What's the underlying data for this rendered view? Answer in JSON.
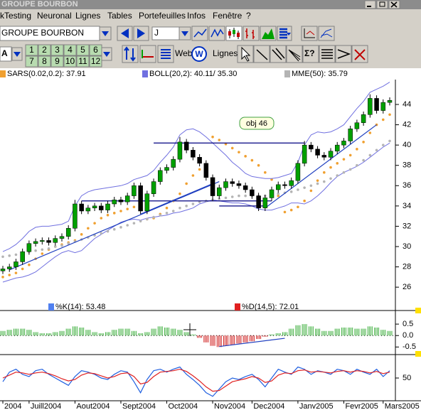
{
  "window": {
    "title": "GROUPE BOURBON"
  },
  "menu": [
    "kTesting",
    "Neuronal",
    "Lignes",
    "Tables",
    "Portefeuilles",
    "Infos",
    "Fenêtre",
    "?"
  ],
  "toolbar": {
    "symbol": "GROUPE BOURBON",
    "period": "J",
    "font": "A",
    "numbers": [
      "1",
      "2",
      "3",
      "4",
      "5",
      "6",
      "7",
      "8",
      "9",
      "10",
      "11",
      "12"
    ],
    "web": "Web",
    "web_icon": "W",
    "lines": "Lignes",
    "sigma": "Σ?"
  },
  "chart_data": [
    {
      "type": "candlestick",
      "categories": [
        "2004",
        null,
        null,
        null,
        "Juill2004",
        null,
        null,
        null,
        null,
        null,
        null,
        "Aout2004",
        null,
        null,
        null,
        null,
        null,
        null,
        "Sept2004",
        null,
        null,
        null,
        null,
        null,
        null,
        "Oct2004",
        null,
        null,
        null,
        null,
        null,
        null,
        "Nov2004",
        null,
        null,
        null,
        null,
        null,
        "Dec2004",
        null,
        null,
        null,
        null,
        null,
        null,
        "Janv2005",
        null,
        null,
        null,
        null,
        null,
        null,
        "Fevr2005",
        null,
        null,
        null,
        null,
        null,
        "Mars2005",
        null
      ],
      "open": [
        27.6,
        27.8,
        28.0,
        28.5,
        29.5,
        30.3,
        30.5,
        30.6,
        30.4,
        30.8,
        31.0,
        31.8,
        34.2,
        33.5,
        33.8,
        34.0,
        33.6,
        34.2,
        34.6,
        34.4,
        35.0,
        36.0,
        33.5,
        35.2,
        36.4,
        37.5,
        37.8,
        38.6,
        40.3,
        39.5,
        38.8,
        38.2,
        36.8,
        35.0,
        35.8,
        36.4,
        36.2,
        36.0,
        35.6,
        35.0,
        33.8,
        34.8,
        35.6,
        36.1,
        36.0,
        36.5,
        38.2,
        40.0,
        39.6,
        39.0,
        38.8,
        39.4,
        40.0,
        40.4,
        41.6,
        42.2,
        43.0,
        44.6,
        43.4,
        44.2
      ],
      "high": [
        28.1,
        28.3,
        28.8,
        29.8,
        30.6,
        30.8,
        30.9,
        30.9,
        31.1,
        31.3,
        32.1,
        34.6,
        34.5,
        34.1,
        34.3,
        34.3,
        34.5,
        34.9,
        34.9,
        35.3,
        36.3,
        36.3,
        35.5,
        36.7,
        37.8,
        38.1,
        38.9,
        40.8,
        40.6,
        39.8,
        39.1,
        38.5,
        37.1,
        36.1,
        36.7,
        36.7,
        36.5,
        36.3,
        35.9,
        35.3,
        35.1,
        35.9,
        36.4,
        36.4,
        36.8,
        38.5,
        40.4,
        40.3,
        39.9,
        39.3,
        39.7,
        40.3,
        40.7,
        41.9,
        42.5,
        43.3,
        45.0,
        44.9,
        44.5,
        44.7
      ],
      "low": [
        27.3,
        27.5,
        27.7,
        28.2,
        29.2,
        30.0,
        30.2,
        30.1,
        30.1,
        30.5,
        30.7,
        31.5,
        33.2,
        33.2,
        33.5,
        33.3,
        33.3,
        33.9,
        34.1,
        34.1,
        34.7,
        33.2,
        33.2,
        34.9,
        36.1,
        37.2,
        37.5,
        38.3,
        39.2,
        38.5,
        37.9,
        36.5,
        34.5,
        34.7,
        35.5,
        35.9,
        35.7,
        35.3,
        34.7,
        33.5,
        33.5,
        34.5,
        35.3,
        35.7,
        35.7,
        36.2,
        37.9,
        39.3,
        38.7,
        38.5,
        38.5,
        39.1,
        39.7,
        40.1,
        41.3,
        41.9,
        42.7,
        43.1,
        43.1,
        43.9
      ],
      "close": [
        27.8,
        28.0,
        28.5,
        29.5,
        30.3,
        30.5,
        30.6,
        30.4,
        30.8,
        31.0,
        31.8,
        34.2,
        33.5,
        33.8,
        34.0,
        33.6,
        34.2,
        34.6,
        34.4,
        35.0,
        36.0,
        33.5,
        35.2,
        36.4,
        37.5,
        37.8,
        38.6,
        40.3,
        39.5,
        38.8,
        38.2,
        36.8,
        35.0,
        35.8,
        36.4,
        36.2,
        36.0,
        35.6,
        35.0,
        33.8,
        34.8,
        35.6,
        36.1,
        36.0,
        36.5,
        38.2,
        40.0,
        39.6,
        39.0,
        38.8,
        39.4,
        40.0,
        40.4,
        41.6,
        42.2,
        43.0,
        44.6,
        43.4,
        44.2,
        44.4
      ],
      "up_color": "#00a000",
      "down_color": "#000000",
      "series": [
        {
          "name": "SARS(0.02,0.2): 37.91",
          "color": "#f0a030",
          "style": "dots",
          "values": [
            27.0,
            27.2,
            27.4,
            27.8,
            28.2,
            28.8,
            29.3,
            29.7,
            30.0,
            30.2,
            30.4,
            30.6,
            31.2,
            31.8,
            32.3,
            32.8,
            33.1,
            33.3,
            33.5,
            33.7,
            33.9,
            34.2,
            32.7,
            32.8,
            33.2,
            33.8,
            34.5,
            35.2,
            36.2,
            37.0,
            37.6,
            38.1,
            40.8,
            40.5,
            40.1,
            39.7,
            39.3,
            38.9,
            38.5,
            38.0,
            37.3,
            36.6,
            35.0,
            33.4,
            33.6,
            33.9,
            34.5,
            35.5,
            36.5,
            37.3,
            37.8,
            38.2,
            38.6,
            39.0,
            39.6,
            40.3,
            41.2,
            42.0,
            42.5,
            43.0
          ]
        },
        {
          "name": "BOLL(20,2): 40.11/ 35.30",
          "color": "#7070e0",
          "style": "band",
          "upper": [
            29.5,
            29.8,
            30.2,
            30.8,
            31.5,
            31.9,
            32.0,
            32.0,
            32.1,
            32.2,
            32.5,
            34.0,
            35.0,
            35.4,
            35.6,
            35.7,
            35.8,
            35.9,
            36.0,
            36.2,
            36.6,
            36.8,
            37.0,
            37.5,
            38.3,
            39.0,
            39.8,
            41.0,
            41.5,
            41.6,
            41.3,
            40.8,
            40.2,
            39.6,
            39.0,
            38.3,
            37.8,
            37.2,
            36.9,
            36.8,
            36.7,
            36.7,
            36.8,
            37.0,
            37.2,
            38.3,
            40.0,
            41.0,
            41.3,
            41.2,
            41.3,
            41.6,
            42.0,
            42.8,
            43.6,
            44.3,
            45.2,
            45.5,
            45.8,
            46.2
          ],
          "lower": [
            26.5,
            26.7,
            26.9,
            27.0,
            27.2,
            27.5,
            28.0,
            28.5,
            29.0,
            29.4,
            29.6,
            29.4,
            29.6,
            30.2,
            30.8,
            31.2,
            31.6,
            32.0,
            32.4,
            32.6,
            32.7,
            32.6,
            32.8,
            32.9,
            33.0,
            33.1,
            33.3,
            33.4,
            33.6,
            33.8,
            34.2,
            34.4,
            34.6,
            34.5,
            34.4,
            34.3,
            34.3,
            34.2,
            34.0,
            33.7,
            33.6,
            33.6,
            33.8,
            34.0,
            34.3,
            34.3,
            34.2,
            34.5,
            35.0,
            35.6,
            36.3,
            36.9,
            37.3,
            37.6,
            37.9,
            38.3,
            38.8,
            39.3,
            39.8,
            40.2
          ]
        },
        {
          "name": "MME(50): 35.79",
          "color": "#b4b4b4",
          "style": "dots",
          "values": [
            29.0,
            29.1,
            29.2,
            29.3,
            29.5,
            29.6,
            29.7,
            29.8,
            30.0,
            30.1,
            30.3,
            30.5,
            30.7,
            30.9,
            31.1,
            31.3,
            31.5,
            31.7,
            31.9,
            32.1,
            32.3,
            32.5,
            32.7,
            32.9,
            33.1,
            33.3,
            33.5,
            33.8,
            34.0,
            34.2,
            34.4,
            34.5,
            34.6,
            34.7,
            34.8,
            34.9,
            35.0,
            35.0,
            35.0,
            35.0,
            35.0,
            35.1,
            35.2,
            35.3,
            35.4,
            35.6,
            35.8,
            36.0,
            36.2,
            36.4,
            36.7,
            37.0,
            37.3,
            37.6,
            38.0,
            38.5,
            39.0,
            39.5,
            40.0,
            40.4
          ]
        }
      ],
      "trendlines": [
        {
          "x": [
            23,
            46
          ],
          "y": [
            40.2,
            40.2
          ],
          "color": "#000080"
        },
        {
          "x": [
            12,
            41
          ],
          "y": [
            34.5,
            34.5
          ],
          "color": "#000080"
        },
        {
          "x": [
            33,
            40
          ],
          "y": [
            34.0,
            34.0
          ],
          "color": "#000080"
        },
        {
          "x": [
            1,
            33
          ],
          "y": [
            27.7,
            36.4
          ],
          "color": "#2040c0"
        },
        {
          "x": [
            21,
            32
          ],
          "y": [
            33.2,
            36.2
          ],
          "color": "#2040c0"
        },
        {
          "x": [
            40,
            57
          ],
          "y": [
            33.8,
            42.0
          ],
          "color": "#2040c0"
        }
      ],
      "annotation": "obj 46",
      "ylim": [
        23.7,
        46.45
      ],
      "yticks": [
        26,
        28,
        30,
        32,
        34,
        36,
        38,
        40,
        42,
        44
      ]
    },
    {
      "type": "bar",
      "legend": [
        {
          "name": "%K(14): 53.48",
          "color": "#5080f0"
        },
        {
          "name": "%D(14,5): 72.01",
          "color": "#e02020"
        }
      ],
      "values": [
        0.2,
        0.25,
        0.3,
        0.3,
        0.25,
        0.15,
        0.1,
        0.1,
        0.15,
        0.2,
        0.3,
        0.4,
        0.35,
        0.25,
        0.15,
        0.1,
        0.15,
        0.25,
        0.3,
        0.3,
        0.2,
        0.1,
        0.15,
        0.3,
        0.4,
        0.35,
        0.3,
        0.25,
        0.15,
        0.05,
        -0.1,
        -0.3,
        -0.45,
        -0.5,
        -0.45,
        -0.4,
        -0.35,
        -0.3,
        -0.25,
        -0.15,
        -0.05,
        0.05,
        0.1,
        0.15,
        0.3,
        0.45,
        0.5,
        0.4,
        0.3,
        0.2,
        0.2,
        0.3,
        0.35,
        0.35,
        0.3,
        0.3,
        0.4,
        0.35,
        0.25,
        0.2
      ],
      "positive_color": "#40b040",
      "negative_color": "#d02020",
      "trendlines": [
        {
          "x": [
            33,
            43
          ],
          "y": [
            -0.48,
            -0.12
          ],
          "color": "#2040c0"
        }
      ],
      "ylim": [
        -0.8,
        1.0
      ],
      "yticks": [
        {
          "value": 0.5,
          "label": "0.5"
        },
        {
          "value": 0,
          "label": "0.0"
        },
        {
          "value": -0.5,
          "label": "-0.5"
        }
      ]
    },
    {
      "type": "line",
      "series": [
        {
          "color": "#2060e0",
          "values": [
            45,
            58,
            62,
            55,
            52,
            60,
            62,
            55,
            50,
            45,
            40,
            52,
            60,
            58,
            55,
            50,
            48,
            55,
            60,
            58,
            45,
            30,
            48,
            60,
            62,
            58,
            62,
            65,
            55,
            48,
            40,
            30,
            25,
            35,
            45,
            50,
            48,
            52,
            55,
            48,
            38,
            50,
            62,
            58,
            55,
            65,
            62,
            55,
            60,
            58,
            55,
            62,
            60,
            55,
            62,
            58,
            55,
            62,
            52,
            60
          ]
        },
        {
          "color": "#e02020",
          "values": [
            50,
            54,
            58,
            57,
            55,
            57,
            58,
            56,
            53,
            49,
            46,
            48,
            54,
            57,
            56,
            53,
            50,
            52,
            56,
            57,
            52,
            42,
            44,
            52,
            58,
            59,
            60,
            62,
            59,
            53,
            46,
            38,
            32,
            33,
            39,
            45,
            47,
            49,
            52,
            50,
            44,
            46,
            54,
            57,
            56,
            60,
            61,
            58,
            59,
            58,
            57,
            59,
            60,
            58,
            60,
            59,
            57,
            59,
            56,
            58
          ]
        }
      ],
      "ylim": [
        20,
        80
      ],
      "yticks": [
        50
      ]
    }
  ]
}
